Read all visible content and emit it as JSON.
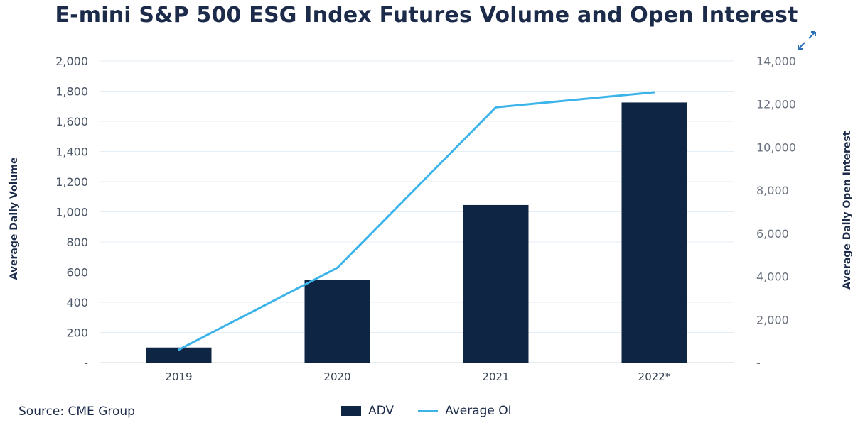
{
  "colors": {
    "bar": "#0f2544",
    "line": "#3cb4ea",
    "grid": "#e6eef5"
  },
  "chart_data": {
    "type": "bar",
    "title": "E-mini S&P 500 ESG Index Futures Volume and Open Interest",
    "categories": [
      "2019",
      "2020",
      "2021",
      "2022*"
    ],
    "series": [
      {
        "name": "ADV",
        "type": "bar",
        "axis": "left",
        "values": [
          100,
          550,
          1045,
          1725
        ]
      },
      {
        "name": "Average OI",
        "type": "line",
        "axis": "right",
        "values": [
          600,
          4400,
          11850,
          12550
        ]
      }
    ],
    "left_axis": {
      "label": "Average Daily Volume",
      "ylim": [
        0,
        2000
      ],
      "ticks": [
        "-",
        "200",
        "400",
        "600",
        "800",
        "1,000",
        "1,200",
        "1,400",
        "1,600",
        "1,800",
        "2,000"
      ]
    },
    "right_axis": {
      "label": "Average Daily Open Interest",
      "ylim": [
        0,
        14000
      ],
      "ticks": [
        "-",
        "2,000",
        "4,000",
        "6,000",
        "8,000",
        "10,000",
        "12,000",
        "14,000"
      ]
    },
    "grid": true,
    "legend_position": "bottom-center",
    "source": "Source: CME Group"
  }
}
